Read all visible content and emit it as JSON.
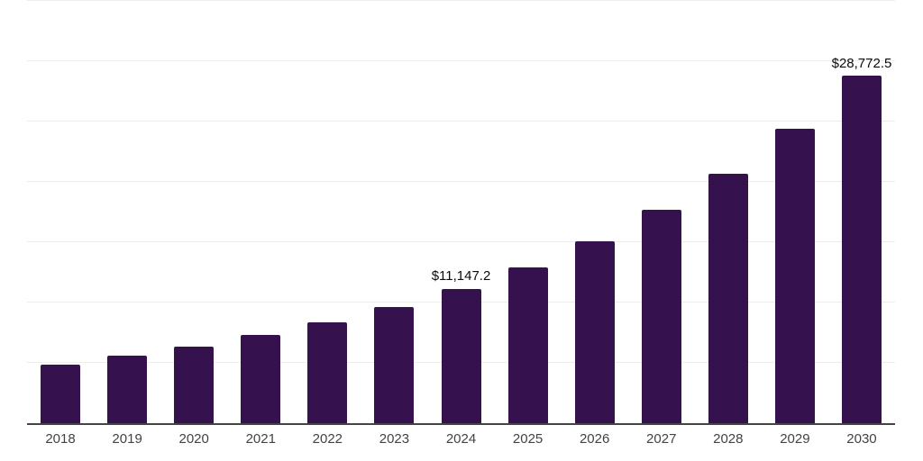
{
  "chart_data": {
    "type": "bar",
    "title": "",
    "xlabel": "",
    "ylabel": "",
    "categories": [
      "2018",
      "2019",
      "2020",
      "2021",
      "2022",
      "2023",
      "2024",
      "2025",
      "2026",
      "2027",
      "2028",
      "2029",
      "2030"
    ],
    "values": [
      4840,
      5590,
      6360,
      7280,
      8350,
      9650,
      11147.2,
      12920,
      15080,
      17700,
      20640,
      24400,
      28772.5
    ],
    "value_labels": {
      "2024": "$11,147.2",
      "2030": "$28,772.5"
    },
    "ylim": [
      0,
      35000
    ],
    "grid_step": 5000,
    "grid": "horizontal-only",
    "legend": "none",
    "colors": {
      "bar": "#35124e",
      "axis": "#444444",
      "gridline": "#ededed",
      "tick_label": "#434343",
      "value_label": "#0a0a0a",
      "background": "#ffffff"
    }
  }
}
